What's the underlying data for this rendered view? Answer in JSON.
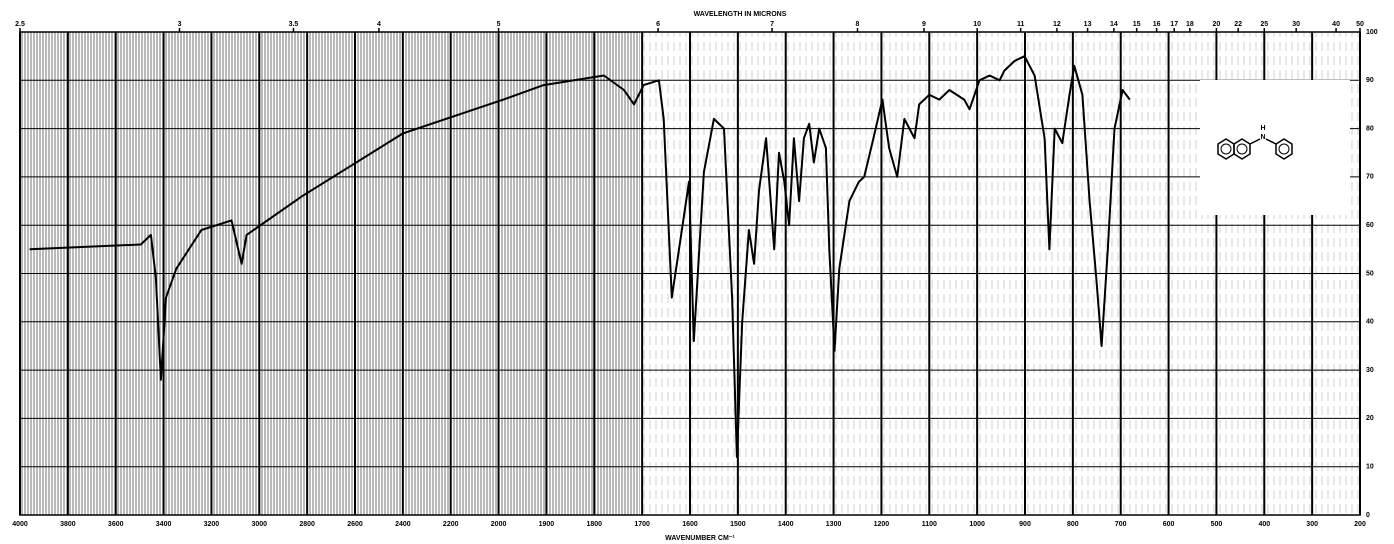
{
  "chart_data": {
    "type": "line",
    "title": "WAVELENGTH IN MICRONS",
    "xlabel": "WAVENUMBER CM⁻¹",
    "color": "#000000",
    "grid": true,
    "annotations": [
      "N",
      "H"
    ],
    "xlim": [
      4000,
      200
    ],
    "xticks": [
      4000,
      3800,
      3600,
      3400,
      3200,
      3000,
      2800,
      2600,
      2400,
      2200,
      2000,
      1900,
      1800,
      1700,
      1600,
      1500,
      1400,
      1300,
      1200,
      1100,
      1000,
      900,
      800,
      700,
      600,
      500,
      400,
      300,
      200
    ],
    "top_ticks": [
      2.5,
      3,
      3.5,
      4,
      5,
      6,
      7,
      8,
      9,
      10,
      11,
      12,
      13,
      14,
      15,
      16,
      17,
      18,
      20,
      22,
      25,
      30,
      40,
      50
    ],
    "ylim": [
      0,
      100
    ],
    "yticks": [
      0,
      10,
      20,
      30,
      40,
      50,
      60,
      70,
      80,
      90,
      100
    ],
    "x": [
      3960,
      3495,
      3453,
      3432,
      3411,
      3390,
      3347,
      3242,
      3116,
      3074,
      3053,
      2821,
      2400,
      1990,
      1906,
      1780,
      1738,
      1717,
      1697,
      1665,
      1655,
      1638,
      1623,
      1602,
      1592,
      1571,
      1550,
      1529,
      1512,
      1502,
      1491,
      1477,
      1466,
      1456,
      1441,
      1424,
      1414,
      1403,
      1393,
      1383,
      1372,
      1362,
      1351,
      1341,
      1330,
      1316,
      1309,
      1298,
      1288,
      1267,
      1247,
      1236,
      1219,
      1198,
      1184,
      1167,
      1152,
      1131,
      1121,
      1100,
      1079,
      1058,
      1027,
      1016,
      995,
      974,
      953,
      943,
      922,
      901,
      880,
      859,
      849,
      838,
      822,
      807,
      797,
      780,
      765,
      751,
      740,
      727,
      713,
      696,
      681
    ],
    "values": [
      55,
      56,
      58,
      49,
      28,
      45,
      51,
      59,
      61,
      52,
      58,
      66,
      79,
      86,
      89,
      91,
      88,
      85,
      89,
      90,
      82,
      45,
      55,
      69,
      36,
      71,
      82,
      80,
      45,
      12,
      40,
      59,
      52,
      67,
      78,
      55,
      75,
      69,
      60,
      78,
      65,
      78,
      81,
      73,
      80,
      76,
      55,
      34,
      51,
      65,
      69,
      70,
      77,
      86,
      76,
      70,
      82,
      78,
      85,
      87,
      86,
      88,
      86,
      84,
      90,
      91,
      90,
      92,
      94,
      95,
      91,
      78,
      55,
      80,
      77,
      87,
      93,
      87,
      65,
      49,
      35,
      55,
      80,
      88,
      86
    ]
  }
}
